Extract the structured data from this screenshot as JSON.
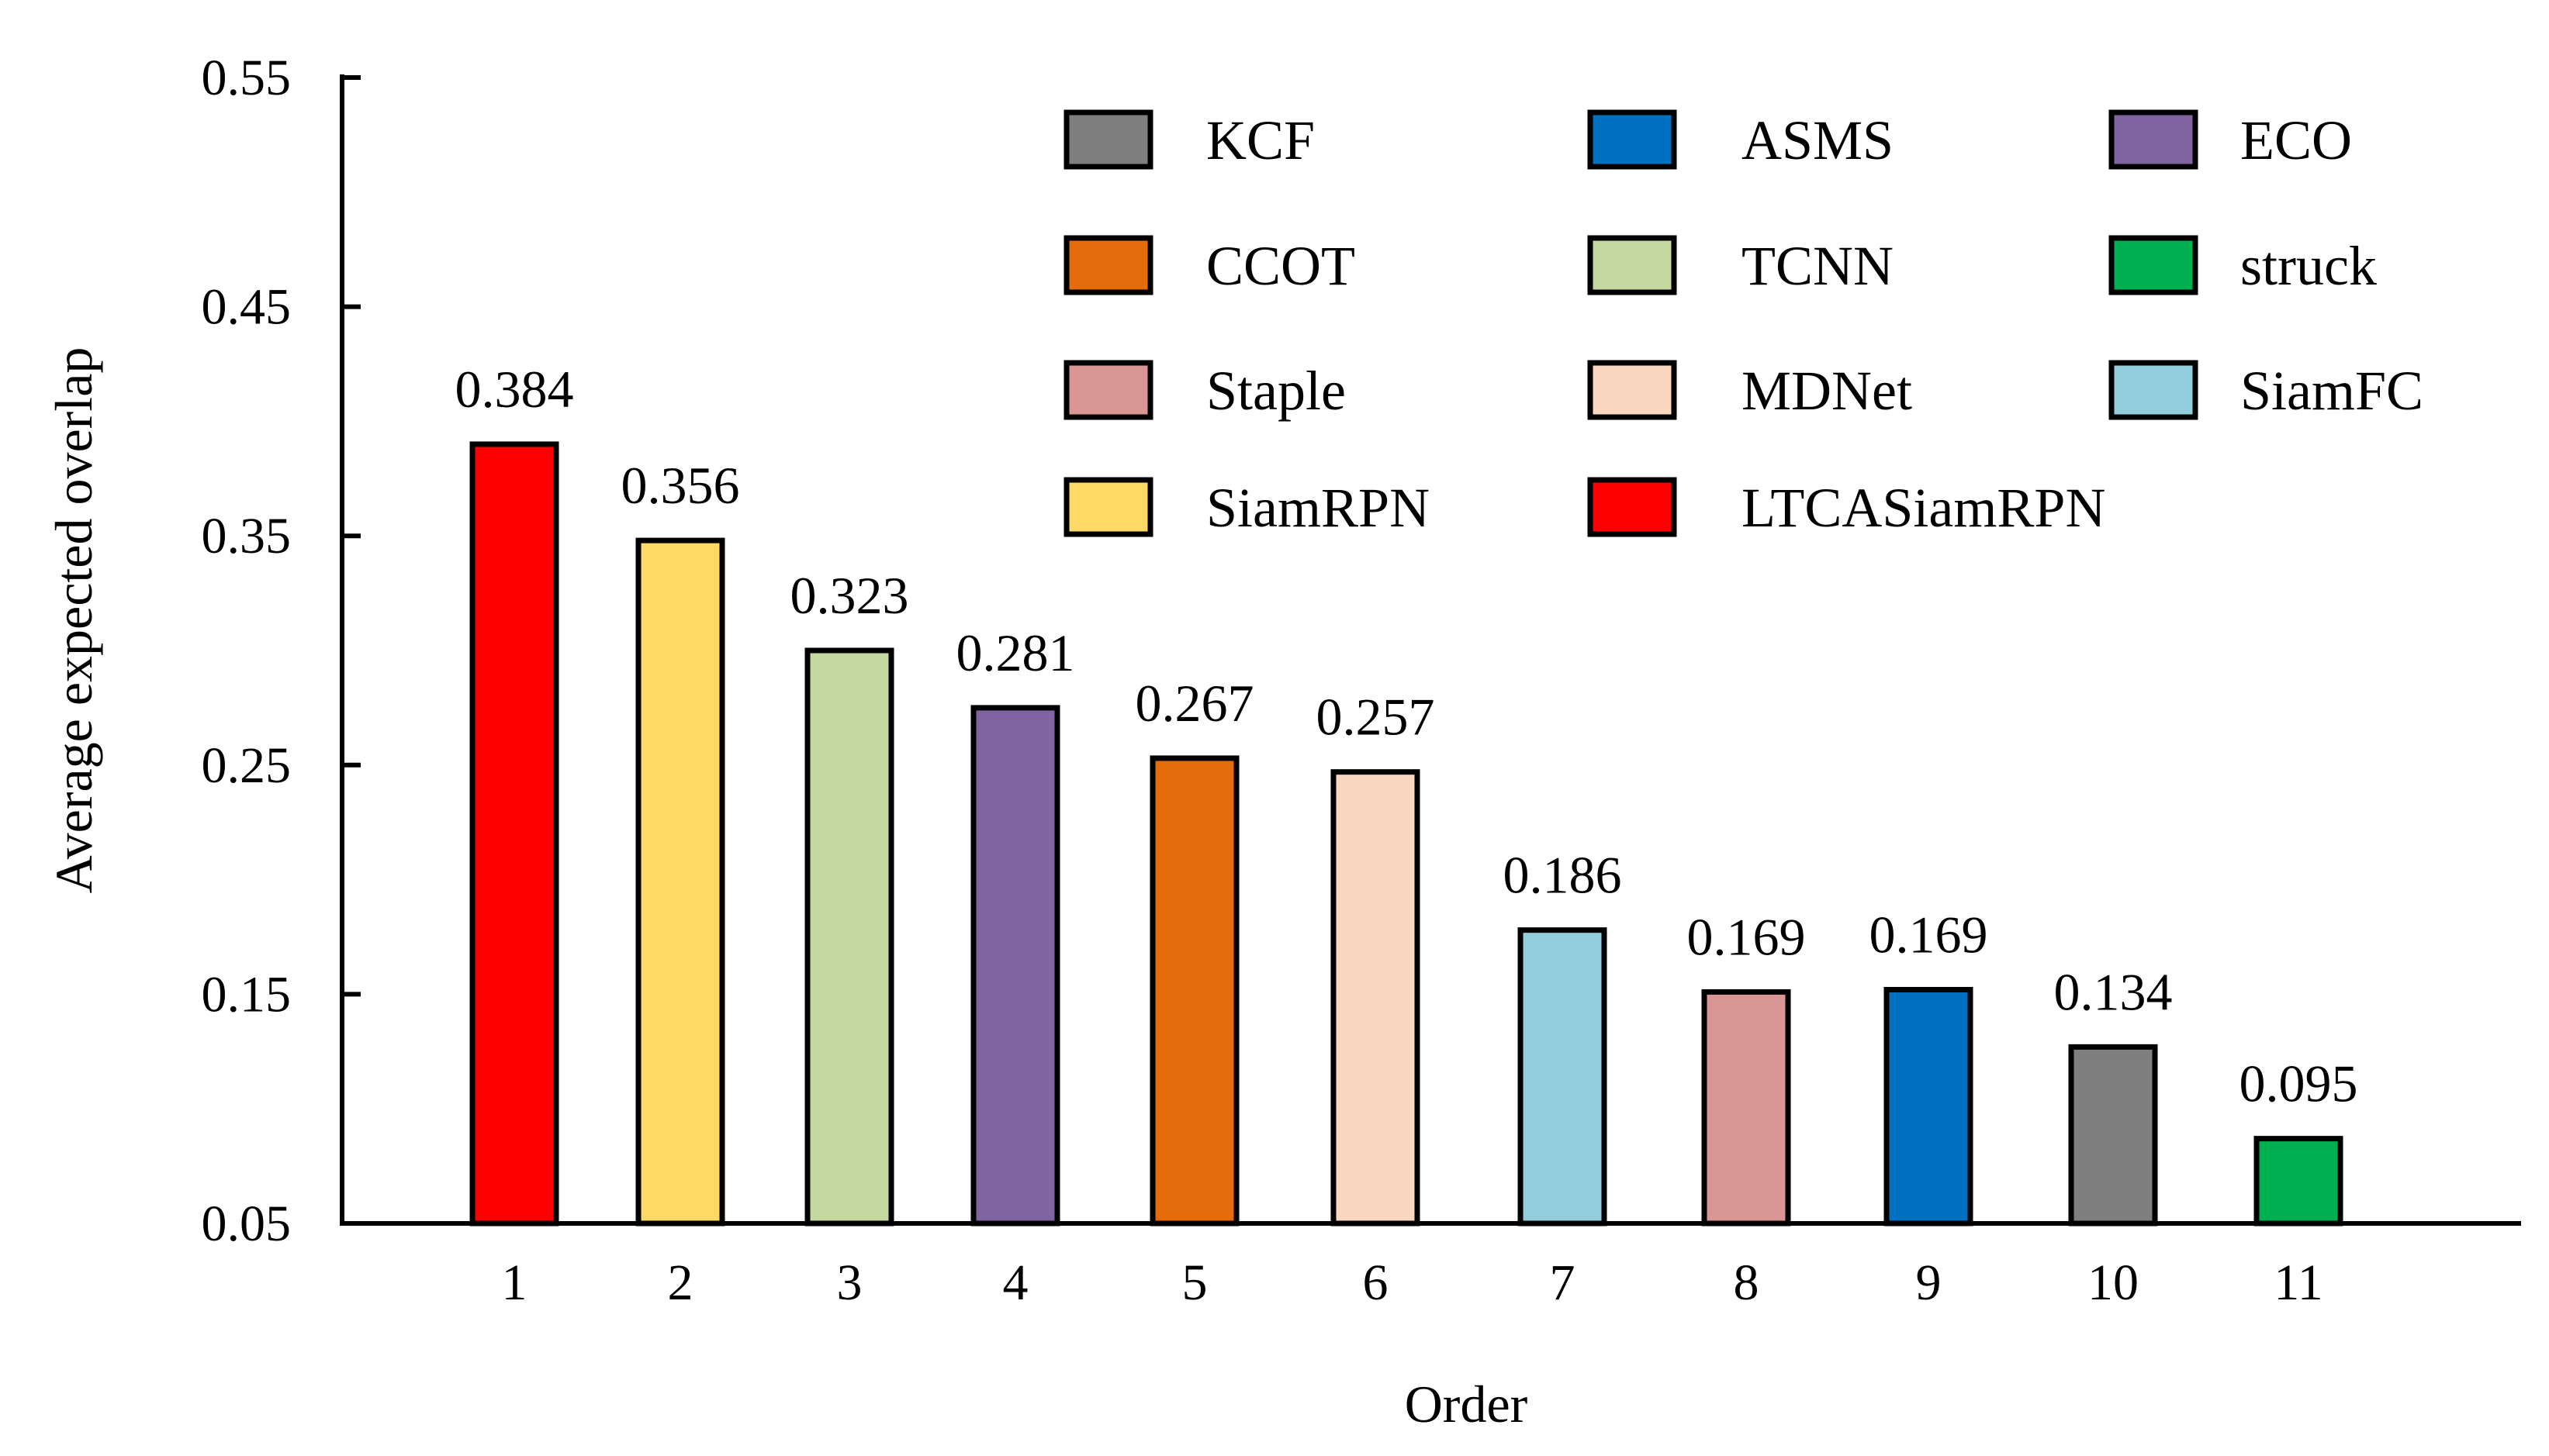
{
  "chart_data": {
    "type": "bar",
    "title": "",
    "xlabel": "Order",
    "ylabel": "Average expected overlap",
    "ylim": [
      0.05,
      0.55
    ],
    "yticks": [
      "0.05",
      "0.15",
      "0.25",
      "0.35",
      "0.45",
      "0.55"
    ],
    "categories": [
      "1",
      "2",
      "3",
      "4",
      "5",
      "6",
      "7",
      "8",
      "9",
      "10",
      "11"
    ],
    "values": [
      0.384,
      0.356,
      0.323,
      0.281,
      0.267,
      0.257,
      0.186,
      0.169,
      0.169,
      0.134,
      0.095
    ],
    "bar_heights": [
      0.39,
      0.348,
      0.3,
      0.275,
      0.253,
      0.247,
      0.178,
      0.151,
      0.152,
      0.127,
      0.087
    ],
    "value_labels": [
      "0.384",
      "0.356",
      "0.323",
      "0.281",
      "0.267",
      "0.257",
      "0.186",
      "0.169",
      "0.169",
      "0.134",
      "0.095"
    ],
    "methods": [
      "LTCASiamRPN",
      "SiamRPN",
      "TCNN",
      "ECO",
      "CCOT",
      "MDNet",
      "SiamFC",
      "Staple",
      "ASMS",
      "KCF",
      "struck"
    ],
    "colors": [
      "#FF0000",
      "#FFD966",
      "#C5D8A0",
      "#8064A2",
      "#E46C0A",
      "#FAD7BE",
      "#92CDDC",
      "#D99694",
      "#0070C0",
      "#7F7F7F",
      "#00B050"
    ],
    "legend": [
      {
        "label": "KCF",
        "color": "#7F7F7F"
      },
      {
        "label": "ASMS",
        "color": "#0070C0"
      },
      {
        "label": "ECO",
        "color": "#8064A2"
      },
      {
        "label": "CCOT",
        "color": "#E46C0A"
      },
      {
        "label": "TCNN",
        "color": "#C5D8A0"
      },
      {
        "label": "struck",
        "color": "#00B050"
      },
      {
        "label": "Staple",
        "color": "#D99694"
      },
      {
        "label": "MDNet",
        "color": "#FAD7BE"
      },
      {
        "label": "SiamFC",
        "color": "#92CDDC"
      },
      {
        "label": "SiamRPN",
        "color": "#FFD966"
      },
      {
        "label": "LTCASiamRPN",
        "color": "#FF0000"
      }
    ],
    "legend_position": "top-right",
    "grid": false
  }
}
